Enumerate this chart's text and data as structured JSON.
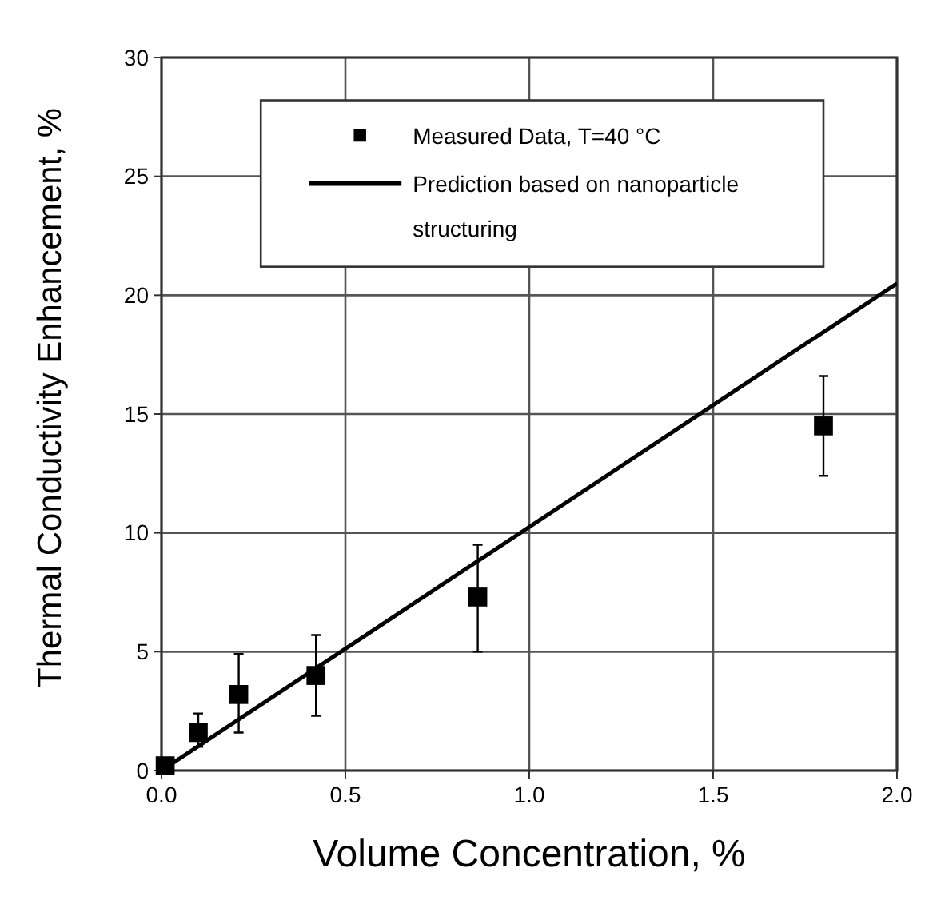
{
  "chart_data": {
    "type": "scatter",
    "xlabel": "Volume Concentration, %",
    "ylabel": "Thermal Conductivity Enhancement, %",
    "xlim": [
      0,
      2
    ],
    "xticks": [
      {
        "value": 0,
        "label": "0.0"
      },
      0.5,
      {
        "value": 1,
        "label": "1.0"
      },
      1.5,
      {
        "value": 2,
        "label": "2.0"
      }
    ],
    "ylim": [
      0,
      30
    ],
    "yticks": [
      0,
      5,
      10,
      15,
      20,
      25,
      30
    ],
    "grid": true,
    "legend": "top",
    "series": [
      {
        "name": "Measured Data, T=40 °C",
        "marker": "square",
        "color": "#000000",
        "x": [
          0.01,
          0.1,
          0.21,
          0.42,
          0.86,
          1.8
        ],
        "values": [
          0.2,
          1.6,
          3.2,
          4.0,
          7.3,
          14.5
        ],
        "errors": [
          null,
          [
            1.0,
            2.4
          ],
          [
            1.6,
            4.9
          ],
          [
            2.3,
            5.7
          ],
          [
            5.0,
            9.5
          ],
          [
            12.4,
            16.6
          ]
        ]
      },
      {
        "name": "Prediction based on nanoparticle structuring",
        "type": "line",
        "color": "#000000",
        "x": [
          0,
          2
        ],
        "values": [
          0,
          20.5
        ]
      }
    ]
  }
}
